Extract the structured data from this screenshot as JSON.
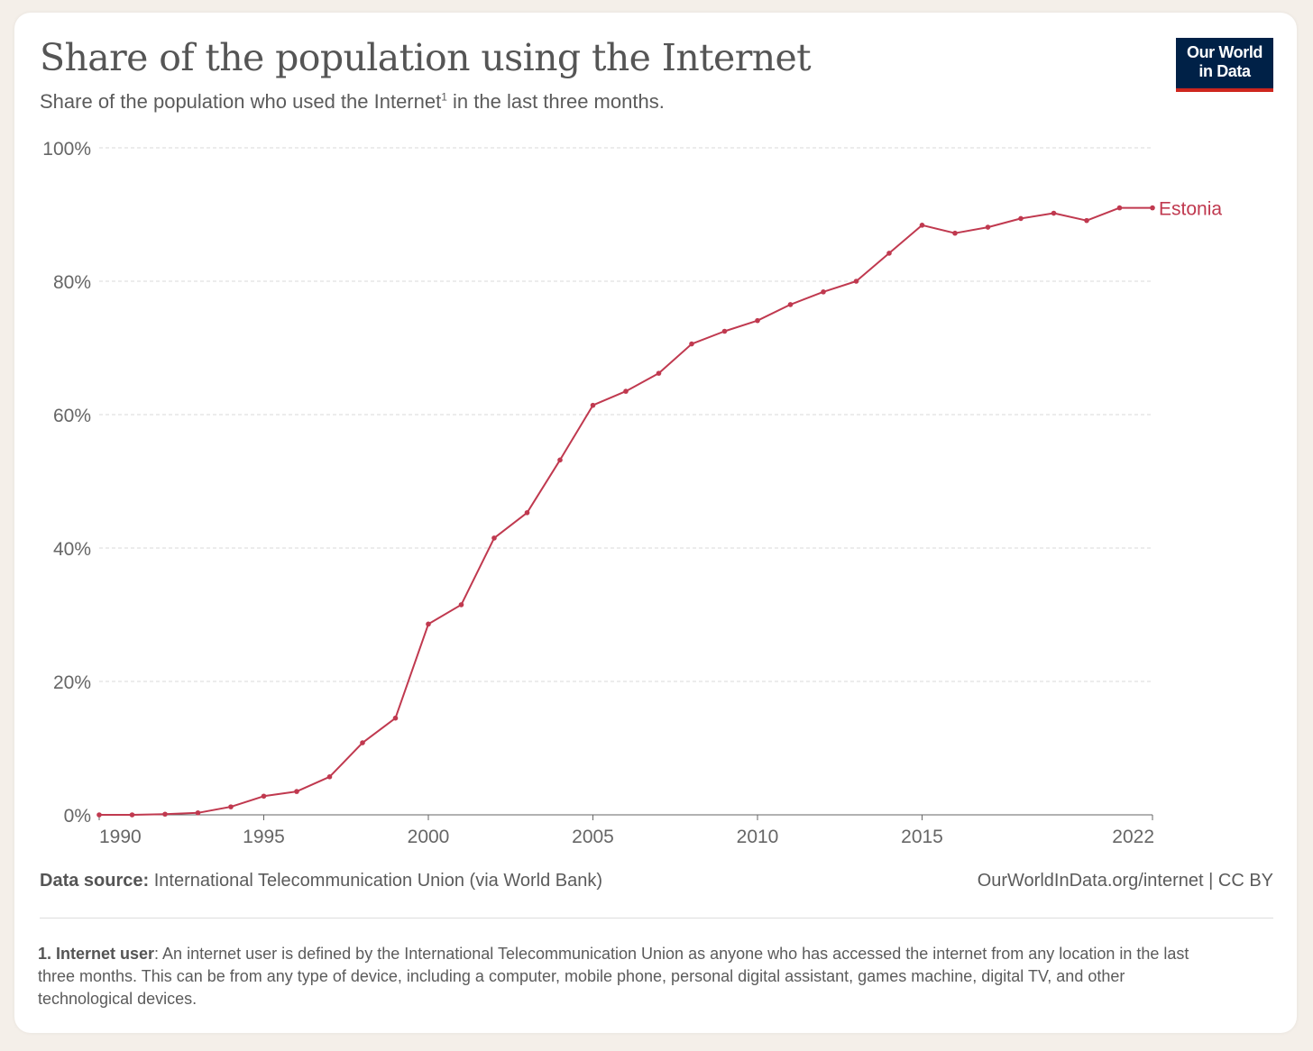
{
  "header": {
    "title": "Share of the population using the Internet",
    "subtitle_pre": "Share of the population who used the Internet",
    "subtitle_sup": "1",
    "subtitle_post": " in the last three months."
  },
  "logo": {
    "line1": "Our World",
    "line2": "in Data"
  },
  "footer": {
    "source_label": "Data source:",
    "source_text": " International Telecommunication Union (via World Bank)",
    "url_text": "OurWorldInData.org/internet | CC BY"
  },
  "note": {
    "label": "1. Internet user",
    "text": ": An internet user is defined by the International Telecommunication Union as anyone who has accessed the internet from any location in the last three months. This can be from any type of device, including a computer, mobile phone, personal digital assistant, games machine, digital TV, and other technological devices."
  },
  "chart_data": {
    "type": "line",
    "title": "Share of the population using the Internet",
    "xlabel": "",
    "ylabel": "",
    "xlim": [
      1990,
      2022
    ],
    "ylim": [
      0,
      100
    ],
    "x_ticks": [
      "1990",
      "1995",
      "2000",
      "2005",
      "2010",
      "2015",
      "2022"
    ],
    "y_ticks": [
      "0%",
      "20%",
      "40%",
      "60%",
      "80%",
      "100%"
    ],
    "grid": true,
    "colors": {
      "series": "#c0394f",
      "grid": "#d9d9d9",
      "axis": "#666666"
    },
    "series": [
      {
        "name": "Estonia",
        "x": [
          1990,
          1991,
          1992,
          1993,
          1994,
          1995,
          1996,
          1997,
          1998,
          1999,
          2000,
          2001,
          2002,
          2003,
          2004,
          2005,
          2006,
          2007,
          2008,
          2009,
          2010,
          2011,
          2012,
          2013,
          2014,
          2015,
          2016,
          2017,
          2018,
          2019,
          2020,
          2021,
          2022
        ],
        "values": [
          0,
          0,
          0.1,
          0.3,
          1.2,
          2.8,
          3.5,
          5.7,
          10.8,
          14.5,
          28.6,
          31.5,
          41.5,
          45.3,
          53.2,
          61.4,
          63.5,
          66.2,
          70.6,
          72.5,
          74.1,
          76.5,
          78.4,
          80.0,
          84.2,
          88.4,
          87.2,
          88.1,
          89.4,
          90.2,
          89.1,
          91.0,
          91.0
        ]
      }
    ]
  }
}
